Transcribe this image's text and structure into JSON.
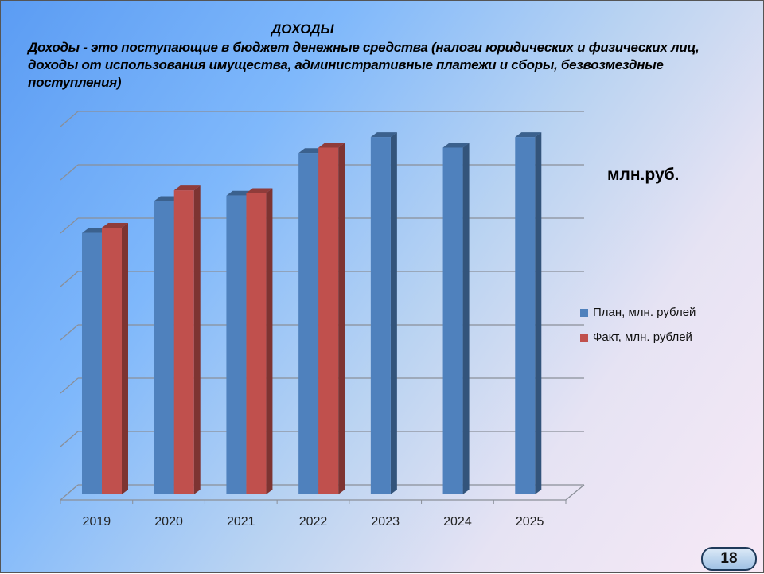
{
  "slide": {
    "heading": "ДОХОДЫ",
    "description": "Доходы - это поступающие в бюджет денежные средства (налоги юридических и физических лиц, доходы от использования имущества, административные платежи и сборы, безвозмездные поступления)",
    "unit_label": "млн.руб.",
    "page_number": "18"
  },
  "chart_data": {
    "type": "bar",
    "style": "3d-clustered-column",
    "categories": [
      "2019",
      "2020",
      "2021",
      "2022",
      "2023",
      "2024",
      "2025"
    ],
    "series": [
      {
        "name": "План, млн. рублей",
        "color": "#4f81bd",
        "values": [
          4.9,
          5.5,
          5.6,
          6.4,
          6.7,
          6.5,
          6.7
        ]
      },
      {
        "name": "Факт, млн. рублей",
        "color": "#c0504d",
        "values": [
          5.0,
          5.7,
          5.65,
          6.5,
          null,
          null,
          null
        ]
      }
    ],
    "ylim": [
      0,
      7
    ],
    "y_tick_labels_shown": false,
    "grid": true,
    "legend_position": "right"
  }
}
